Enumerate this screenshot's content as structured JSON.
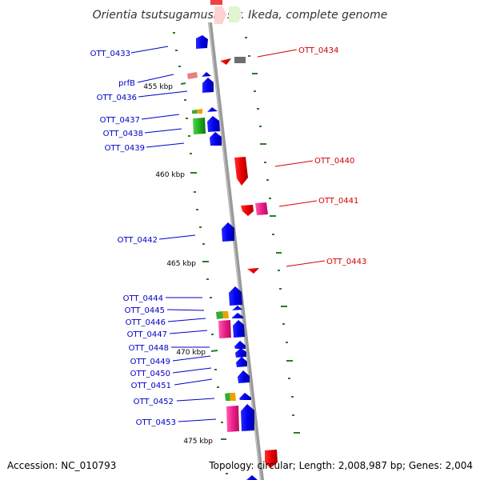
{
  "title": "Orientia tsutsugamushi str. Ikeda, complete genome",
  "footer": {
    "accession": "Accession: NC_010793",
    "stats": "Topology: circular; Length: 2,008,987 bp; Genes: 2,004"
  },
  "colors": {
    "forward_label": "#0000c8",
    "reverse_label": "#d40000",
    "backbone": "#999999",
    "tick": "#2a7a2a"
  },
  "scale_labels": [
    "455 kbp",
    "460 kbp",
    "465 kbp",
    "470 kbp",
    "475 kbp"
  ],
  "forward_labels": [
    "OTT_0433",
    "prfB",
    "OTT_0436",
    "OTT_0437",
    "OTT_0438",
    "OTT_0439",
    "OTT_0442",
    "OTT_0444",
    "OTT_0445",
    "OTT_0446",
    "OTT_0447",
    "OTT_0448",
    "OTT_0449",
    "OTT_0450",
    "OTT_0451",
    "OTT_0452",
    "OTT_0453"
  ],
  "reverse_labels": [
    "OTT_0434",
    "OTT_0440",
    "OTT_0441",
    "OTT_0443"
  ]
}
